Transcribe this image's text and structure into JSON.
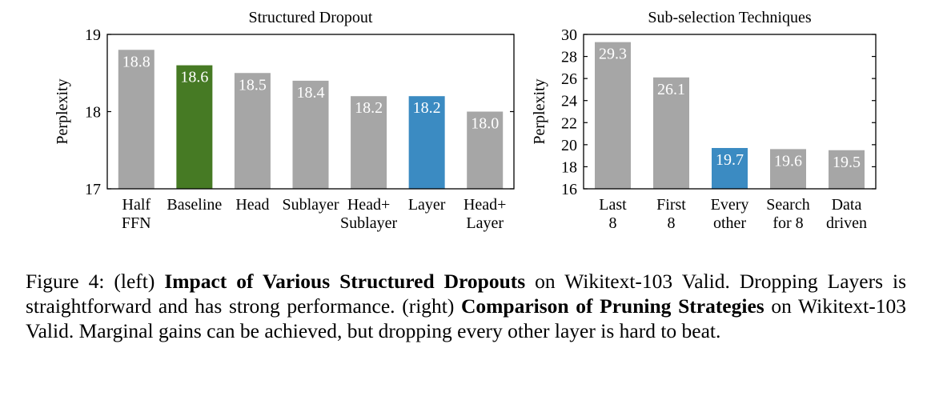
{
  "chart_data": [
    {
      "type": "bar",
      "title": "Structured Dropout",
      "xlabel": "",
      "ylabel": "Perplexity",
      "ylim": [
        17,
        19
      ],
      "yticks": [
        "17",
        "18",
        "19"
      ],
      "categories": [
        [
          "Half",
          "FFN"
        ],
        [
          "Baseline"
        ],
        [
          "Head"
        ],
        [
          "Sublayer"
        ],
        [
          "Head+",
          "Sublayer"
        ],
        [
          "Layer"
        ],
        [
          "Head+",
          "Layer"
        ]
      ],
      "values": [
        18.8,
        18.6,
        18.5,
        18.4,
        18.2,
        18.2,
        18.0
      ],
      "value_labels": [
        "18.8",
        "18.6",
        "18.5",
        "18.4",
        "18.2",
        "18.2",
        "18.0"
      ],
      "colors": [
        "#a6a6a6",
        "#467a24",
        "#a6a6a6",
        "#a6a6a6",
        "#a6a6a6",
        "#3b8bc2",
        "#a6a6a6"
      ],
      "grid": false
    },
    {
      "type": "bar",
      "title": "Sub-selection Techniques",
      "xlabel": "",
      "ylabel": "Perplexity",
      "ylim": [
        16,
        30
      ],
      "yticks": [
        "16",
        "18",
        "20",
        "22",
        "24",
        "26",
        "28",
        "30"
      ],
      "categories": [
        [
          "Last",
          "8"
        ],
        [
          "First",
          "8"
        ],
        [
          "Every",
          "other"
        ],
        [
          "Search",
          "for 8"
        ],
        [
          "Data",
          "driven"
        ]
      ],
      "values": [
        29.3,
        26.1,
        19.7,
        19.6,
        19.5
      ],
      "value_labels": [
        "29.3",
        "26.1",
        "19.7",
        "19.6",
        "19.5"
      ],
      "colors": [
        "#a6a6a6",
        "#a6a6a6",
        "#3b8bc2",
        "#a6a6a6",
        "#a6a6a6"
      ],
      "grid": false
    }
  ],
  "caption": {
    "label": "Figure 4: (left) ",
    "bold1": "Impact of Various Structured Dropouts",
    "text1": " on Wikitext-103 Valid. Dropping Layers is straightforward and has strong performance. (right) ",
    "bold2": "Comparison of Pruning Strategies",
    "text2": " on Wikitext-103 Valid. Marginal gains can be achieved, but dropping every other layer is hard to beat."
  }
}
